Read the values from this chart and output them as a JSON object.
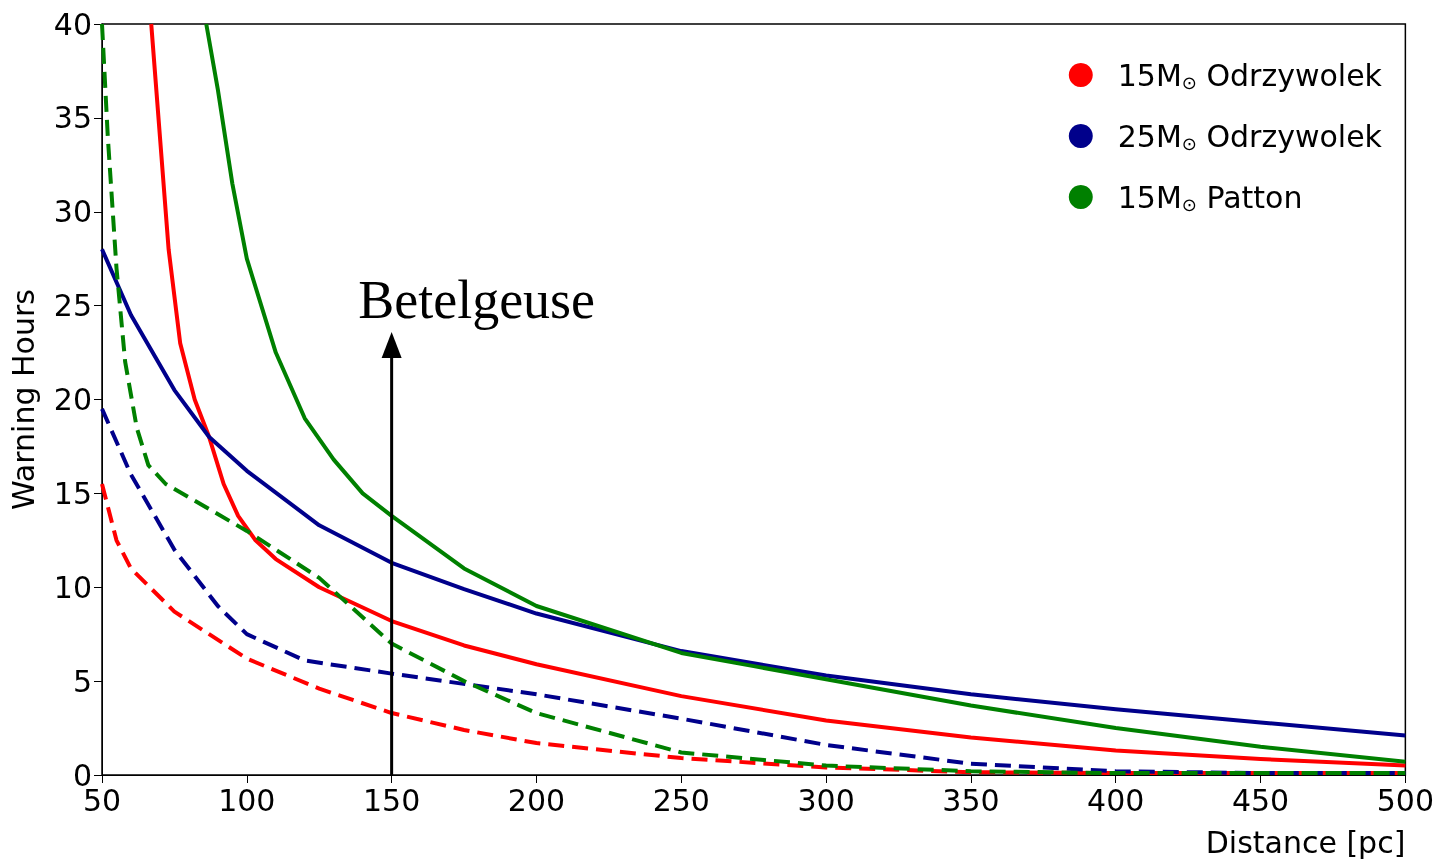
{
  "chart_data": {
    "type": "line",
    "xlabel": "Distance [pc]",
    "ylabel": "Warning Hours",
    "xlim": [
      50,
      500
    ],
    "ylim": [
      0,
      40
    ],
    "xticks": [
      50,
      100,
      150,
      200,
      250,
      300,
      350,
      400,
      450,
      500
    ],
    "yticks": [
      0,
      5,
      10,
      15,
      20,
      25,
      30,
      35,
      40
    ],
    "grid": false,
    "legend": "top right",
    "marker": "none",
    "ref_lines": [
      {
        "axis": "x",
        "value": 150,
        "label": "Betelgeuse",
        "color": "#000000"
      }
    ],
    "series": [
      {
        "name": "15M$_{⊙}$ Odrzywolek",
        "color": "#ff0000",
        "line_style": "solid",
        "x": [
          67,
          70,
          73,
          77,
          82,
          87,
          92,
          97,
          103,
          110,
          125,
          150,
          175,
          200,
          250,
          300,
          350,
          400,
          450,
          500
        ],
        "values": [
          40,
          34,
          28,
          23,
          20,
          18,
          15.5,
          13.8,
          12.5,
          11.5,
          10,
          8.2,
          6.9,
          5.9,
          4.2,
          2.9,
          2.0,
          1.3,
          0.85,
          0.5
        ]
      },
      {
        "name": "25M$_{⊙}$ Odrzywolek",
        "color": "#00008b",
        "line_style": "solid",
        "x": [
          50,
          60,
          75,
          87,
          100,
          125,
          150,
          175,
          200,
          250,
          300,
          350,
          400,
          450,
          500
        ],
        "values": [
          28,
          24.5,
          20.5,
          18,
          16.2,
          13.3,
          11.3,
          9.9,
          8.6,
          6.6,
          5.3,
          4.3,
          3.5,
          2.8,
          2.1
        ]
      },
      {
        "name": "15M$_{⊙}$ Patton",
        "color": "#008000",
        "line_style": "solid",
        "x": [
          86,
          90,
          95,
          100,
          110,
          120,
          130,
          140,
          150,
          175,
          200,
          250,
          275,
          300,
          350,
          400,
          450,
          500
        ],
        "values": [
          40,
          36.5,
          31.5,
          27.5,
          22.5,
          19,
          16.8,
          15,
          13.8,
          11,
          9,
          6.5,
          5.8,
          5.1,
          3.7,
          2.5,
          1.5,
          0.7
        ]
      },
      {
        "color": "#ff0000",
        "line_style": "dashed",
        "x": [
          50,
          55,
          60,
          75,
          100,
          125,
          150,
          175,
          200,
          250,
          300,
          350,
          400,
          500
        ],
        "values": [
          15.5,
          12.5,
          11,
          8.7,
          6.2,
          4.6,
          3.3,
          2.4,
          1.7,
          0.9,
          0.4,
          0.15,
          0.1,
          0.1
        ]
      },
      {
        "color": "#00008b",
        "line_style": "dashed",
        "x": [
          50,
          60,
          75,
          90,
          100,
          120,
          150,
          200,
          250,
          300,
          350,
          400,
          450,
          500
        ],
        "values": [
          19.5,
          16,
          12,
          9,
          7.5,
          6.1,
          5.4,
          4.3,
          3.0,
          1.6,
          0.6,
          0.2,
          0.1,
          0.1
        ]
      },
      {
        "color": "#008000",
        "line_style": "dashed",
        "x": [
          50,
          52,
          55,
          58,
          62,
          66,
          72,
          100,
          125,
          150,
          175,
          200,
          250,
          300,
          350,
          400,
          500
        ],
        "values": [
          40,
          34,
          27,
          22,
          18.5,
          16.5,
          15.5,
          13,
          10.5,
          7,
          5,
          3.3,
          1.2,
          0.5,
          0.2,
          0.1,
          0.1
        ]
      }
    ]
  }
}
